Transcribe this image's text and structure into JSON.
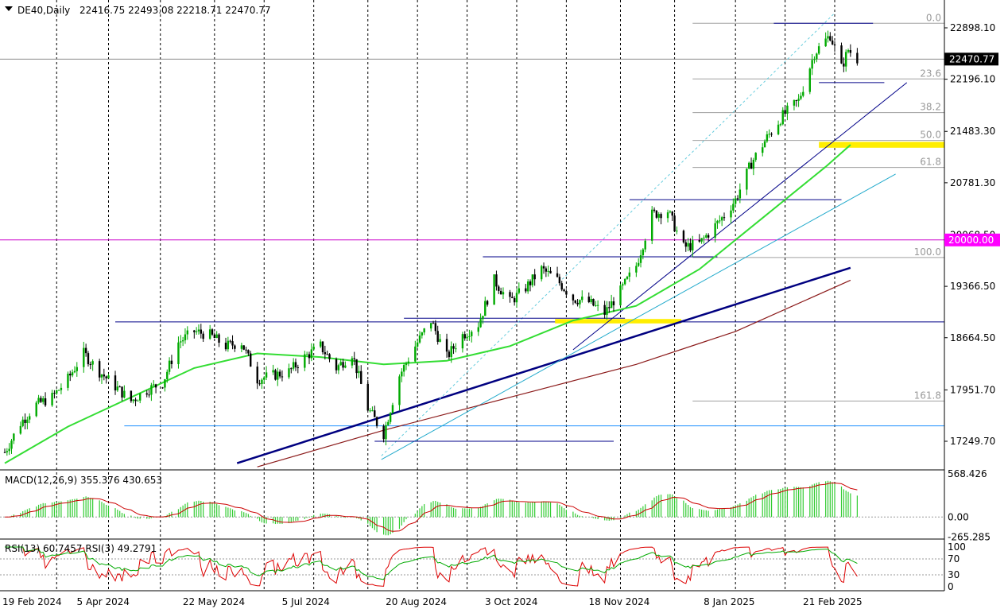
{
  "header": {
    "symbol_label": "DE40,Daily",
    "ohlc": "22416.75 22493.08 22218.71 22470.77"
  },
  "chart_data": [
    {
      "type": "candlestick",
      "pane": "main",
      "symbol": "DE40",
      "timeframe": "Daily",
      "last": {
        "open": 22416.75,
        "high": 22493.08,
        "low": 22218.71,
        "close": 22470.77
      },
      "price_range": [
        16900,
        23070
      ],
      "price_ticks": [
        "22898.10",
        "22196.10",
        "21483.30",
        "20781.30",
        "20068.50",
        "19366.50",
        "18664.50",
        "17951.70",
        "17249.70"
      ],
      "current_price_label": "22470.77",
      "marked_level_label": "20000.00",
      "date_labels": [
        "19 Feb 2024",
        "5 Apr 2024",
        "22 May 2024",
        "5 Jul 2024",
        "20 Aug 2024",
        "3 Oct 2024",
        "18 Nov 2024",
        "8 Jan 2025",
        "21 Feb 2025"
      ],
      "close_path": [
        [
          "2024-02-19",
          17100
        ],
        [
          "2024-02-26",
          17500
        ],
        [
          "2024-03-04",
          17750
        ],
        [
          "2024-03-11",
          17850
        ],
        [
          "2024-03-18",
          18100
        ],
        [
          "2024-03-25",
          18450
        ],
        [
          "2024-04-01",
          18200
        ],
        [
          "2024-04-08",
          18000
        ],
        [
          "2024-04-15",
          17800
        ],
        [
          "2024-04-22",
          17950
        ],
        [
          "2024-04-29",
          18050
        ],
        [
          "2024-05-06",
          18600
        ],
        [
          "2024-05-13",
          18750
        ],
        [
          "2024-05-20",
          18700
        ],
        [
          "2024-05-27",
          18550
        ],
        [
          "2024-06-03",
          18600
        ],
        [
          "2024-06-10",
          18100
        ],
        [
          "2024-06-17",
          18150
        ],
        [
          "2024-06-24",
          18200
        ],
        [
          "2024-07-01",
          18400
        ],
        [
          "2024-07-08",
          18550
        ],
        [
          "2024-07-15",
          18250
        ],
        [
          "2024-07-22",
          18450
        ],
        [
          "2024-07-29",
          17700
        ],
        [
          "2024-08-05",
          17350
        ],
        [
          "2024-08-12",
          18150
        ],
        [
          "2024-08-19",
          18550
        ],
        [
          "2024-08-26",
          18900
        ],
        [
          "2024-09-02",
          18400
        ],
        [
          "2024-09-09",
          18700
        ],
        [
          "2024-09-16",
          18850
        ],
        [
          "2024-09-23",
          19450
        ],
        [
          "2024-09-30",
          19150
        ],
        [
          "2024-10-07",
          19350
        ],
        [
          "2024-10-14",
          19600
        ],
        [
          "2024-10-21",
          19450
        ],
        [
          "2024-10-28",
          19200
        ],
        [
          "2024-11-04",
          19150
        ],
        [
          "2024-11-11",
          19000
        ],
        [
          "2024-11-18",
          19300
        ],
        [
          "2024-11-25",
          19650
        ],
        [
          "2024-12-02",
          20350
        ],
        [
          "2024-12-09",
          20400
        ],
        [
          "2024-12-16",
          19900
        ],
        [
          "2024-12-23",
          19950
        ],
        [
          "2025-01-02",
          20300
        ],
        [
          "2025-01-08",
          20550
        ],
        [
          "2025-01-15",
          21050
        ],
        [
          "2025-01-22",
          21400
        ],
        [
          "2025-01-29",
          21700
        ],
        [
          "2025-02-05",
          21900
        ],
        [
          "2025-02-12",
          22550
        ],
        [
          "2025-02-19",
          22800
        ],
        [
          "2025-02-24",
          22350
        ],
        [
          "2025-02-27",
          22600
        ],
        [
          "2025-03-03",
          22470.77
        ]
      ],
      "moving_averages": [
        {
          "color": "#33dd33",
          "path": [
            [
              "2024-02-19",
              16950
            ],
            [
              "2024-03-18",
              17450
            ],
            [
              "2024-04-15",
              17850
            ],
            [
              "2024-05-13",
              18250
            ],
            [
              "2024-06-10",
              18450
            ],
            [
              "2024-07-08",
              18400
            ],
            [
              "2024-08-05",
              18300
            ],
            [
              "2024-09-02",
              18350
            ],
            [
              "2024-09-30",
              18550
            ],
            [
              "2024-10-28",
              18900
            ],
            [
              "2024-11-25",
              19100
            ],
            [
              "2024-12-23",
              19600
            ],
            [
              "2025-01-20",
              20300
            ],
            [
              "2025-02-17",
              21000
            ],
            [
              "2025-02-28",
              21300
            ]
          ]
        },
        {
          "color": "#8b1a1a",
          "path": [
            [
              "2024-06-10",
              16900
            ],
            [
              "2024-08-05",
              17400
            ],
            [
              "2024-09-30",
              17850
            ],
            [
              "2024-11-25",
              18300
            ],
            [
              "2025-01-08",
              18750
            ],
            [
              "2025-02-28",
              19450
            ]
          ]
        }
      ],
      "fibonacci_levels": [
        {
          "label": "0.0",
          "price": 22960
        },
        {
          "label": "23.6",
          "price": 22200
        },
        {
          "label": "38.2",
          "price": 21740
        },
        {
          "label": "50.0",
          "price": 21360
        },
        {
          "label": "61.8",
          "price": 20990
        },
        {
          "label": "100.0",
          "price": 19760
        },
        {
          "label": "161.8",
          "price": 17800
        }
      ],
      "horizontal_levels": [
        {
          "price": 22470.77,
          "color": "#8a8a8a"
        },
        {
          "price": 20000,
          "color": "#cc00cc"
        },
        {
          "price": 18880,
          "color": "#000088"
        },
        {
          "price": 17460,
          "color": "#1e90ff"
        }
      ],
      "support_zones": [
        {
          "price_low": 21260,
          "price_high": 21340,
          "color": "#ffee00"
        },
        {
          "price_low": 18860,
          "price_high": 18920,
          "color": "#ffee00"
        }
      ]
    },
    {
      "type": "histogram",
      "pane": "macd",
      "label": "MACD(12,26,9) 355.376 430.653",
      "params": [
        12,
        26,
        9
      ],
      "macd": 355.376,
      "signal": 430.653,
      "tick_labels": [
        "568.426",
        "0.00",
        "-265.285"
      ],
      "range": [
        -280,
        600
      ]
    },
    {
      "type": "line",
      "pane": "rsi",
      "label": "RSI(13) 60.7457  RSI(3) 49.2791",
      "rsi13": 60.7457,
      "rsi3": 49.2791,
      "tick_labels": [
        "100",
        "70",
        "30",
        "0"
      ],
      "levels": [
        70,
        30
      ],
      "range": [
        0,
        100
      ]
    }
  ],
  "colors": {
    "price_up": "#00aa00",
    "price_down": "#000000",
    "rsi13": "#00aa00",
    "rsi3": "#dd0000",
    "macd_hist": "#33cc33",
    "macd_signal": "#cc0000",
    "fib_lines": "#a0a0a0",
    "trend_lines": "#000080",
    "grid": "#000000"
  }
}
